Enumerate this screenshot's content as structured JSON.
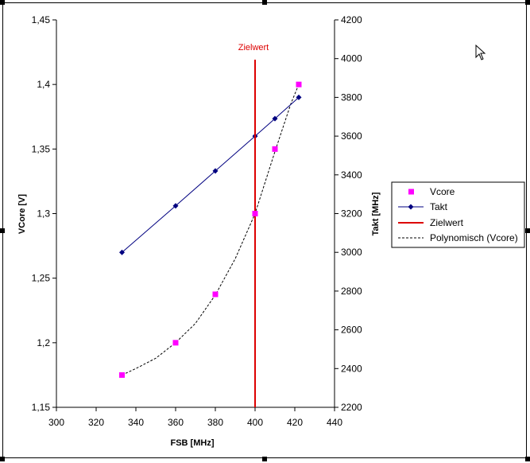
{
  "chart_data": {
    "type": "scatter",
    "x_axis": {
      "label": "FSB [MHz]",
      "range": [
        300,
        440
      ],
      "ticks": [
        300,
        320,
        340,
        360,
        380,
        400,
        420,
        440
      ],
      "tick_labels": [
        "300",
        "320",
        "340",
        "360",
        "380",
        "400",
        "420",
        "440"
      ]
    },
    "y_axis_left": {
      "label": "VCore [V]",
      "range": [
        1.15,
        1.45
      ],
      "ticks": [
        1.15,
        1.2,
        1.25,
        1.3,
        1.35,
        1.4,
        1.45
      ],
      "tick_labels": [
        "1,15",
        "1,2",
        "1,25",
        "1,3",
        "1,35",
        "1,4",
        "1,45"
      ]
    },
    "y_axis_right": {
      "label": "Takt [MHz]",
      "range": [
        2200,
        4200
      ],
      "ticks": [
        2200,
        2400,
        2600,
        2800,
        3000,
        3200,
        3400,
        3600,
        3800,
        4000,
        4200
      ],
      "tick_labels": [
        "2200",
        "2400",
        "2600",
        "2800",
        "3000",
        "3200",
        "3400",
        "3600",
        "3800",
        "4000",
        "4200"
      ]
    },
    "grid": false,
    "legend_position": "right",
    "series": [
      {
        "name": "Vcore",
        "kind": "markers",
        "axis": "left",
        "color": "#ff00ff",
        "x": [
          333,
          360,
          380,
          400,
          410,
          422
        ],
        "y": [
          1.175,
          1.2,
          1.2375,
          1.3,
          1.35,
          1.4
        ]
      },
      {
        "name": "Takt",
        "kind": "line-markers",
        "axis": "right",
        "color": "#000080",
        "x": [
          333,
          360,
          380,
          400,
          410,
          422
        ],
        "y": [
          3000,
          3240,
          3420,
          3600,
          3690,
          3800
        ]
      },
      {
        "name": "Zielwert",
        "kind": "vertical-line",
        "axis": "left",
        "color": "#dd0000",
        "x": [
          400,
          400
        ],
        "y": [
          1.15,
          1.4
        ]
      },
      {
        "name": "Polynomisch (Vcore)",
        "kind": "trendline",
        "axis": "left",
        "color": "#000000",
        "x": [
          333,
          340,
          350,
          360,
          370,
          380,
          390,
          400,
          410,
          418,
          422
        ],
        "y": [
          1.175,
          1.18,
          1.188,
          1.2,
          1.215,
          1.237,
          1.265,
          1.3,
          1.348,
          1.385,
          1.4
        ]
      }
    ],
    "annotations": [
      {
        "text": "Zielwert",
        "color": "#dd0000"
      }
    ]
  }
}
